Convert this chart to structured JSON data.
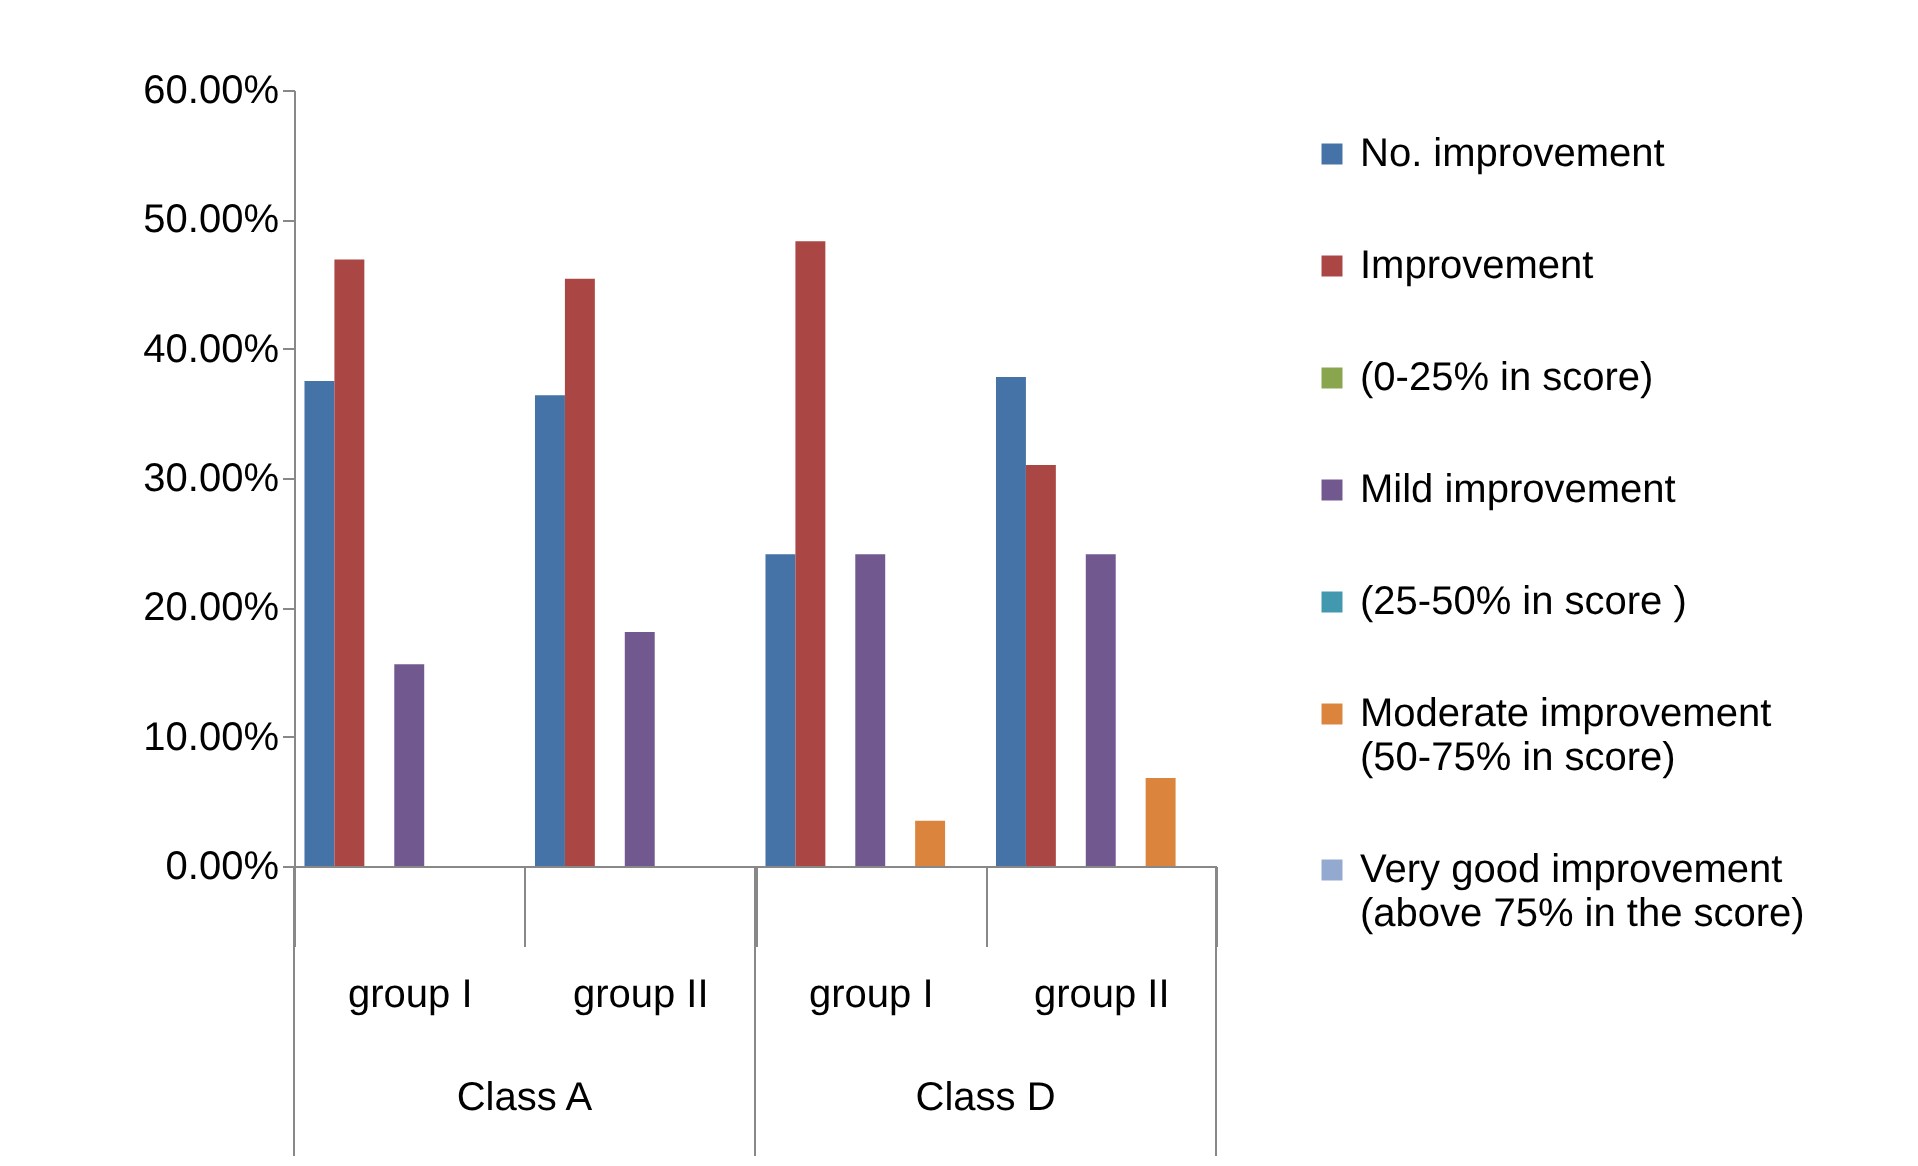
{
  "chart_data": {
    "type": "bar",
    "categories": [
      "group I",
      "group II",
      "group I",
      "group II"
    ],
    "series": [
      {
        "name": "No. improvement",
        "color": "#4572a7",
        "values": [
          37.5,
          36.4,
          24.1,
          37.8
        ]
      },
      {
        "name": "Improvement",
        "color": "#aa4643",
        "values": [
          46.9,
          45.4,
          48.3,
          31.0
        ]
      },
      {
        "name": "(0-25% in score)",
        "color": "#89a54e",
        "values": [
          0,
          0,
          0,
          0
        ]
      },
      {
        "name": "Mild improvement",
        "color": "#71588f",
        "values": [
          15.6,
          18.1,
          24.1,
          24.1
        ]
      },
      {
        "name": "(25-50% in score )",
        "color": "#4198af",
        "values": [
          0,
          0,
          0,
          0
        ]
      },
      {
        "name": "Moderate improvement (50-75% in score)",
        "color": "#db843d",
        "values": [
          0,
          0,
          3.5,
          6.8
        ]
      },
      {
        "name": "Very good improvement (above 75% in the score)",
        "color": "#93a9cf",
        "values": [
          0,
          0,
          0,
          0
        ]
      }
    ],
    "ylim": [
      0,
      60
    ],
    "yticks": [
      {
        "value": 0,
        "label": "0.00%"
      },
      {
        "value": 10,
        "label": "10.00%"
      },
      {
        "value": 20,
        "label": "20.00%"
      },
      {
        "value": 30,
        "label": "30.00%"
      },
      {
        "value": 40,
        "label": "40.00%"
      },
      {
        "value": 50,
        "label": "50.00%"
      },
      {
        "value": 60,
        "label": "60.00%"
      }
    ],
    "annotations": [
      "Class A",
      "Class D"
    ],
    "grid": false,
    "legend": "right"
  }
}
